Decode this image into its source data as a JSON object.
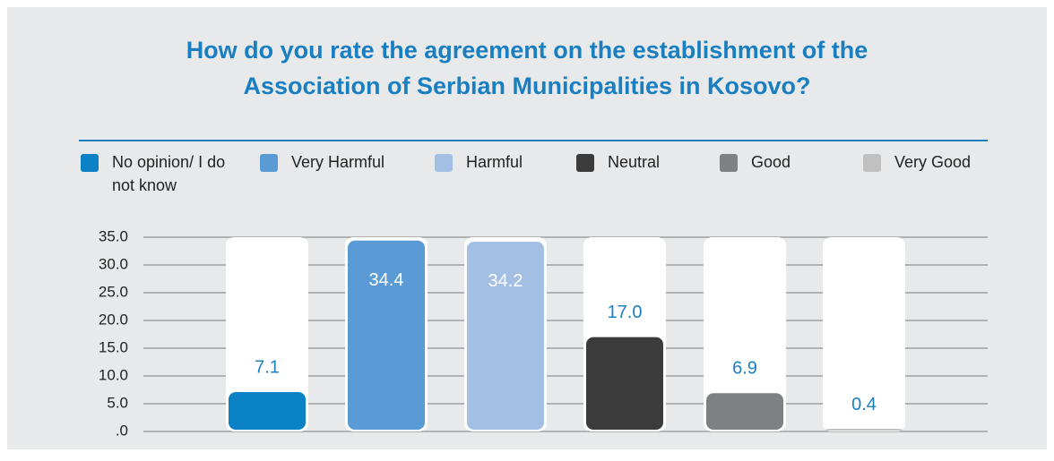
{
  "chart_data": {
    "type": "bar",
    "title": [
      "How do you rate the agreement on the establishment of the",
      "Association of Serbian Municipalities in Kosovo?"
    ],
    "categories": [
      "No opinion/ I do not know",
      "Very Harmful",
      "Harmful",
      "Neutral",
      "Good",
      "Very Good"
    ],
    "values": [
      7.1,
      34.4,
      34.2,
      17,
      6.9,
      0.4
    ],
    "value_labels": [
      "7.1",
      "34.4",
      "34.2",
      "17.0",
      "6.9",
      "0.4"
    ],
    "colors": [
      "#0b82c6",
      "#5b9bd5",
      "#a3c0e4",
      "#3b3b3b",
      "#7f8083",
      "#c0c0c0"
    ],
    "ylim": [
      0,
      35
    ],
    "yticks": [
      {
        "value": 0,
        "label": ".0"
      },
      {
        "value": 5,
        "label": "5.0"
      },
      {
        "value": 10,
        "label": "10.0"
      },
      {
        "value": 15,
        "label": "15.0"
      },
      {
        "value": 20,
        "label": "20.0"
      },
      {
        "value": 25,
        "label": "25.0"
      },
      {
        "value": 30,
        "label": "30.0"
      },
      {
        "value": 35,
        "label": "35.0"
      }
    ],
    "grid": true,
    "legend": "top"
  }
}
